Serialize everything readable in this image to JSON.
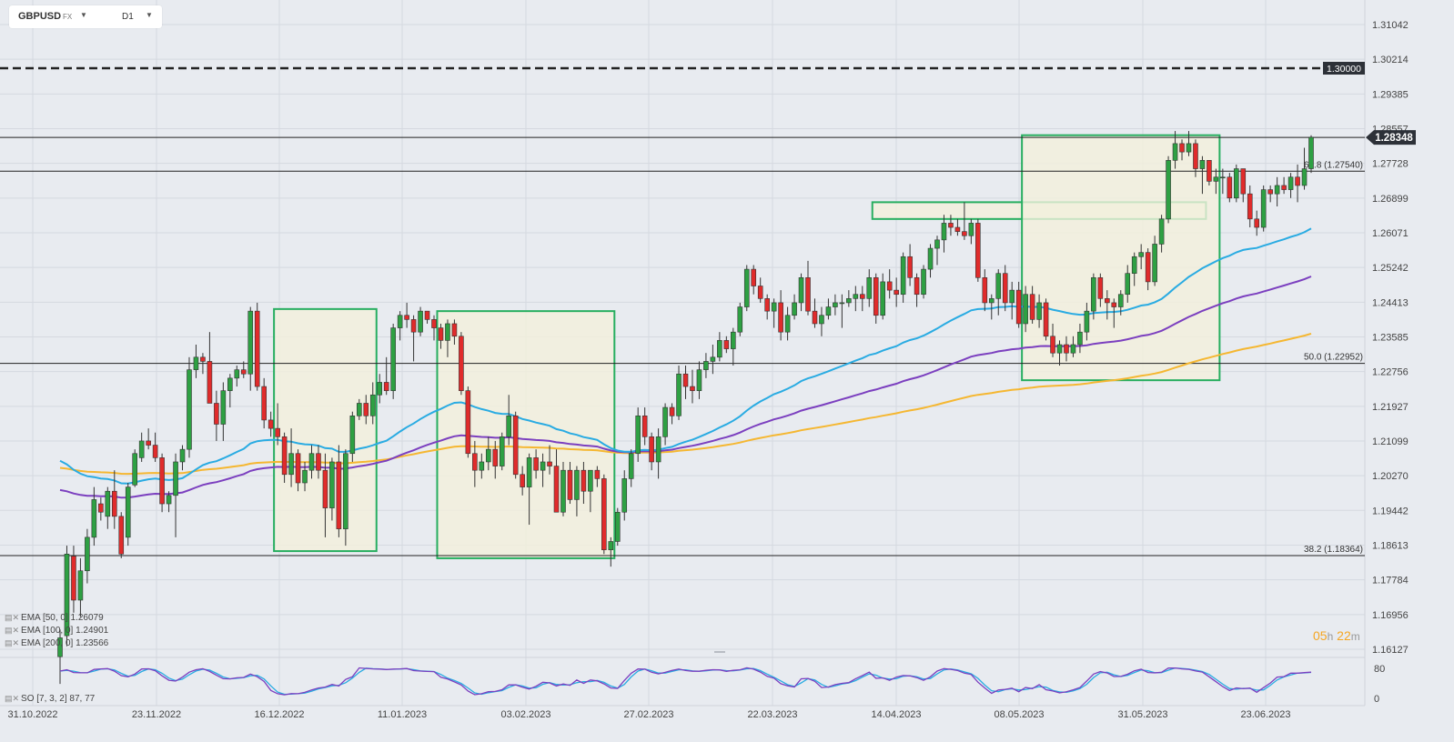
{
  "header": {
    "symbol": "GBPUSD",
    "market": "FX",
    "timeframe": "D1",
    "caret_icon": "chevron-down-icon"
  },
  "indicators": [
    {
      "label": "EMA [50, 0] 1.26079",
      "color": "#29abe2"
    },
    {
      "label": "EMA [100, 0] 1.24901",
      "color": "#7b3fbf"
    },
    {
      "label": "EMA [200, 0] 1.23566",
      "color": "#f5b731"
    }
  ],
  "oscillator_label": "SO [7, 3, 2] 87, 77",
  "timer": {
    "hours": "05",
    "h": "h",
    "minutes": "22",
    "m": "m"
  },
  "chart_data": {
    "type": "candlestick",
    "symbol": "GBPUSD",
    "timeframe": "D1",
    "x_tick_labels": [
      "31.10.2022",
      "23.11.2022",
      "16.12.2022",
      "11.01.2023",
      "03.02.2023",
      "27.02.2023",
      "22.03.2023",
      "14.04.2023",
      "08.05.2023",
      "31.05.2023",
      "23.06.2023"
    ],
    "y_tick_labels": [
      "1.31042",
      "1.30214",
      "1.29385",
      "1.28557",
      "1.27728",
      "1.26899",
      "1.26071",
      "1.25242",
      "1.24413",
      "1.23585",
      "1.22756",
      "1.21927",
      "1.21099",
      "1.20270",
      "1.19442",
      "1.18613",
      "1.17784",
      "1.16956",
      "1.16127"
    ],
    "ylim": [
      1.1604,
      1.3124
    ],
    "current_price": "1.28348",
    "level_label": "1.30000",
    "fib_labels": [
      {
        "label": "61.8 (1.27540)",
        "value": 1.2754
      },
      {
        "label": "50.0 (1.22952)",
        "value": 1.22952
      },
      {
        "label": "38.2 (1.18364)",
        "value": 1.18364
      }
    ],
    "horizontal_lines": [
      1.3,
      1.28348,
      1.2754,
      1.22952,
      1.18364
    ],
    "candles_ohlc": [
      [
        1.1595,
        1.166,
        1.153,
        1.164
      ],
      [
        1.1645,
        1.186,
        1.162,
        1.184
      ],
      [
        1.1835,
        1.186,
        1.17,
        1.173
      ],
      [
        1.173,
        1.183,
        1.169,
        1.18
      ],
      [
        1.18,
        1.19,
        1.177,
        1.188
      ],
      [
        1.188,
        1.2,
        1.186,
        1.197
      ],
      [
        1.196,
        1.1975,
        1.192,
        1.194
      ],
      [
        1.193,
        1.2,
        1.19,
        1.199
      ],
      [
        1.199,
        1.204,
        1.19,
        1.193
      ],
      [
        1.193,
        1.194,
        1.183,
        1.184
      ],
      [
        1.188,
        1.201,
        1.186,
        1.2
      ],
      [
        1.2005,
        1.209,
        1.2,
        1.208
      ],
      [
        1.207,
        1.213,
        1.206,
        1.211
      ],
      [
        1.211,
        1.214,
        1.209,
        1.21
      ],
      [
        1.21,
        1.213,
        1.206,
        1.207
      ],
      [
        1.207,
        1.208,
        1.194,
        1.196
      ],
      [
        1.196,
        1.199,
        1.194,
        1.198
      ],
      [
        1.198,
        1.208,
        1.188,
        1.206
      ],
      [
        1.206,
        1.21,
        1.204,
        1.209
      ],
      [
        1.209,
        1.231,
        1.207,
        1.228
      ],
      [
        1.228,
        1.234,
        1.226,
        1.231
      ],
      [
        1.231,
        1.232,
        1.227,
        1.23
      ],
      [
        1.23,
        1.237,
        1.22,
        1.22
      ],
      [
        1.22,
        1.223,
        1.211,
        1.215
      ],
      [
        1.215,
        1.225,
        1.211,
        1.223
      ],
      [
        1.223,
        1.227,
        1.219,
        1.226
      ],
      [
        1.226,
        1.229,
        1.224,
        1.228
      ],
      [
        1.228,
        1.23,
        1.226,
        1.227
      ],
      [
        1.227,
        1.243,
        1.223,
        1.242
      ],
      [
        1.242,
        1.244,
        1.223,
        1.224
      ],
      [
        1.224,
        1.226,
        1.214,
        1.216
      ],
      [
        1.216,
        1.218,
        1.212,
        1.214
      ],
      [
        1.214,
        1.22,
        1.21,
        1.212
      ],
      [
        1.212,
        1.213,
        1.201,
        1.203
      ],
      [
        1.203,
        1.214,
        1.2,
        1.208
      ],
      [
        1.208,
        1.209,
        1.199,
        1.201
      ],
      [
        1.201,
        1.206,
        1.199,
        1.204
      ],
      [
        1.204,
        1.21,
        1.202,
        1.208
      ],
      [
        1.208,
        1.21,
        1.202,
        1.204
      ],
      [
        1.204,
        1.208,
        1.188,
        1.195
      ],
      [
        1.195,
        1.207,
        1.192,
        1.206
      ],
      [
        1.206,
        1.21,
        1.188,
        1.19
      ],
      [
        1.19,
        1.209,
        1.186,
        1.208
      ],
      [
        1.208,
        1.218,
        1.206,
        1.217
      ],
      [
        1.217,
        1.221,
        1.216,
        1.22
      ],
      [
        1.22,
        1.222,
        1.215,
        1.217
      ],
      [
        1.217,
        1.225,
        1.215,
        1.222
      ],
      [
        1.222,
        1.227,
        1.22,
        1.225
      ],
      [
        1.225,
        1.231,
        1.222,
        1.223
      ],
      [
        1.223,
        1.239,
        1.221,
        1.238
      ],
      [
        1.238,
        1.242,
        1.235,
        1.241
      ],
      [
        1.241,
        1.244,
        1.238,
        1.24
      ],
      [
        1.24,
        1.241,
        1.23,
        1.237
      ],
      [
        1.237,
        1.243,
        1.236,
        1.242
      ],
      [
        1.242,
        1.241,
        1.239,
        1.24
      ],
      [
        1.24,
        1.241,
        1.235,
        1.238
      ],
      [
        1.238,
        1.239,
        1.233,
        1.235
      ],
      [
        1.235,
        1.24,
        1.231,
        1.239
      ],
      [
        1.239,
        1.24,
        1.234,
        1.236
      ],
      [
        1.236,
        1.237,
        1.222,
        1.223
      ],
      [
        1.223,
        1.224,
        1.207,
        1.208
      ],
      [
        1.208,
        1.211,
        1.2,
        1.204
      ],
      [
        1.204,
        1.208,
        1.202,
        1.206
      ],
      [
        1.206,
        1.212,
        1.204,
        1.209
      ],
      [
        1.209,
        1.211,
        1.202,
        1.205
      ],
      [
        1.205,
        1.213,
        1.204,
        1.212
      ],
      [
        1.212,
        1.222,
        1.21,
        1.217
      ],
      [
        1.217,
        1.218,
        1.202,
        1.203
      ],
      [
        1.203,
        1.205,
        1.198,
        1.2
      ],
      [
        1.2,
        1.208,
        1.191,
        1.207
      ],
      [
        1.207,
        1.209,
        1.202,
        1.204
      ],
      [
        1.204,
        1.208,
        1.2,
        1.206
      ],
      [
        1.206,
        1.21,
        1.203,
        1.205
      ],
      [
        1.205,
        1.209,
        1.196,
        1.194
      ],
      [
        1.194,
        1.206,
        1.193,
        1.204
      ],
      [
        1.204,
        1.206,
        1.196,
        1.197
      ],
      [
        1.197,
        1.205,
        1.193,
        1.204
      ],
      [
        1.204,
        1.206,
        1.196,
        1.199
      ],
      [
        1.199,
        1.201,
        1.194,
        1.204
      ],
      [
        1.204,
        1.205,
        1.2,
        1.202
      ],
      [
        1.202,
        1.203,
        1.184,
        1.185
      ],
      [
        1.185,
        1.188,
        1.181,
        1.187
      ],
      [
        1.187,
        1.195,
        1.186,
        1.194
      ],
      [
        1.194,
        1.204,
        1.192,
        1.202
      ],
      [
        1.202,
        1.209,
        1.2,
        1.208
      ],
      [
        1.208,
        1.219,
        1.206,
        1.217
      ],
      [
        1.217,
        1.219,
        1.21,
        1.212
      ],
      [
        1.212,
        1.213,
        1.204,
        1.206
      ],
      [
        1.206,
        1.214,
        1.202,
        1.212
      ],
      [
        1.212,
        1.22,
        1.21,
        1.219
      ],
      [
        1.219,
        1.22,
        1.215,
        1.217
      ],
      [
        1.217,
        1.229,
        1.216,
        1.227
      ],
      [
        1.227,
        1.229,
        1.221,
        1.224
      ],
      [
        1.224,
        1.228,
        1.22,
        1.223
      ],
      [
        1.223,
        1.23,
        1.221,
        1.228
      ],
      [
        1.228,
        1.232,
        1.226,
        1.23
      ],
      [
        1.23,
        1.234,
        1.227,
        1.231
      ],
      [
        1.231,
        1.237,
        1.23,
        1.235
      ],
      [
        1.235,
        1.236,
        1.232,
        1.233
      ],
      [
        1.233,
        1.238,
        1.229,
        1.237
      ],
      [
        1.237,
        1.244,
        1.236,
        1.243
      ],
      [
        1.243,
        1.253,
        1.242,
        1.252
      ],
      [
        1.252,
        1.253,
        1.246,
        1.248
      ],
      [
        1.248,
        1.25,
        1.244,
        1.245
      ],
      [
        1.245,
        1.246,
        1.24,
        1.242
      ],
      [
        1.242,
        1.245,
        1.238,
        1.244
      ],
      [
        1.244,
        1.247,
        1.235,
        1.237
      ],
      [
        1.237,
        1.243,
        1.235,
        1.241
      ],
      [
        1.241,
        1.246,
        1.24,
        1.244
      ],
      [
        1.244,
        1.251,
        1.242,
        1.25
      ],
      [
        1.25,
        1.254,
        1.241,
        1.242
      ],
      [
        1.242,
        1.245,
        1.238,
        1.239
      ],
      [
        1.239,
        1.243,
        1.236,
        1.241
      ],
      [
        1.241,
        1.245,
        1.24,
        1.243
      ],
      [
        1.243,
        1.246,
        1.241,
        1.244
      ],
      [
        1.244,
        1.246,
        1.238,
        1.244
      ],
      [
        1.244,
        1.247,
        1.243,
        1.245
      ],
      [
        1.245,
        1.248,
        1.242,
        1.246
      ],
      [
        1.246,
        1.248,
        1.242,
        1.245
      ],
      [
        1.245,
        1.252,
        1.243,
        1.25
      ],
      [
        1.25,
        1.251,
        1.239,
        1.241
      ],
      [
        1.241,
        1.251,
        1.24,
        1.249
      ],
      [
        1.249,
        1.252,
        1.245,
        1.247
      ],
      [
        1.247,
        1.25,
        1.243,
        1.246
      ],
      [
        1.246,
        1.256,
        1.244,
        1.255
      ],
      [
        1.255,
        1.258,
        1.248,
        1.25
      ],
      [
        1.25,
        1.251,
        1.243,
        1.246
      ],
      [
        1.246,
        1.253,
        1.245,
        1.252
      ],
      [
        1.252,
        1.258,
        1.25,
        1.257
      ],
      [
        1.257,
        1.26,
        1.253,
        1.259
      ],
      [
        1.259,
        1.265,
        1.256,
        1.263
      ],
      [
        1.263,
        1.265,
        1.26,
        1.262
      ],
      [
        1.262,
        1.264,
        1.26,
        1.261
      ],
      [
        1.261,
        1.268,
        1.259,
        1.26
      ],
      [
        1.26,
        1.264,
        1.258,
        1.263
      ],
      [
        1.263,
        1.264,
        1.249,
        1.25
      ],
      [
        1.25,
        1.252,
        1.242,
        1.244
      ],
      [
        1.244,
        1.246,
        1.24,
        1.245
      ],
      [
        1.245,
        1.252,
        1.241,
        1.251
      ],
      [
        1.251,
        1.253,
        1.242,
        1.244
      ],
      [
        1.244,
        1.249,
        1.24,
        1.247
      ],
      [
        1.247,
        1.249,
        1.238,
        1.239
      ],
      [
        1.239,
        1.248,
        1.237,
        1.246
      ],
      [
        1.246,
        1.248,
        1.239,
        1.24
      ],
      [
        1.24,
        1.246,
        1.238,
        1.244
      ],
      [
        1.244,
        1.245,
        1.235,
        1.236
      ],
      [
        1.236,
        1.239,
        1.231,
        1.232
      ],
      [
        1.232,
        1.235,
        1.229,
        1.234
      ],
      [
        1.234,
        1.236,
        1.23,
        1.232
      ],
      [
        1.232,
        1.236,
        1.231,
        1.234
      ],
      [
        1.234,
        1.239,
        1.232,
        1.237
      ],
      [
        1.237,
        1.244,
        1.235,
        1.242
      ],
      [
        1.242,
        1.251,
        1.24,
        1.25
      ],
      [
        1.25,
        1.251,
        1.243,
        1.245
      ],
      [
        1.245,
        1.247,
        1.24,
        1.244
      ],
      [
        1.244,
        1.245,
        1.238,
        1.243
      ],
      [
        1.243,
        1.247,
        1.241,
        1.246
      ],
      [
        1.246,
        1.253,
        1.244,
        1.251
      ],
      [
        1.251,
        1.256,
        1.248,
        1.255
      ],
      [
        1.255,
        1.258,
        1.252,
        1.256
      ],
      [
        1.256,
        1.257,
        1.247,
        1.249
      ],
      [
        1.249,
        1.26,
        1.248,
        1.258
      ],
      [
        1.258,
        1.265,
        1.256,
        1.264
      ],
      [
        1.264,
        1.279,
        1.263,
        1.278
      ],
      [
        1.278,
        1.285,
        1.276,
        1.282
      ],
      [
        1.282,
        1.283,
        1.278,
        1.28
      ],
      [
        1.28,
        1.285,
        1.279,
        1.282
      ],
      [
        1.282,
        1.283,
        1.274,
        1.276
      ],
      [
        1.276,
        1.279,
        1.27,
        1.278
      ],
      [
        1.278,
        1.278,
        1.272,
        1.273
      ],
      [
        1.273,
        1.276,
        1.27,
        1.274
      ],
      [
        1.274,
        1.276,
        1.27,
        1.274
      ],
      [
        1.274,
        1.275,
        1.268,
        1.269
      ],
      [
        1.269,
        1.277,
        1.268,
        1.276
      ],
      [
        1.276,
        1.276,
        1.268,
        1.27
      ],
      [
        1.27,
        1.272,
        1.262,
        1.264
      ],
      [
        1.264,
        1.266,
        1.26,
        1.262
      ],
      [
        1.262,
        1.272,
        1.261,
        1.271
      ],
      [
        1.271,
        1.272,
        1.268,
        1.27
      ],
      [
        1.27,
        1.274,
        1.267,
        1.272
      ],
      [
        1.272,
        1.274,
        1.27,
        1.271
      ],
      [
        1.271,
        1.275,
        1.269,
        1.274
      ],
      [
        1.274,
        1.277,
        1.268,
        1.272
      ],
      [
        1.272,
        1.281,
        1.271,
        1.276
      ],
      [
        1.276,
        1.284,
        1.275,
        1.2835
      ]
    ],
    "ema_series": [
      {
        "name": "EMA [50, 0] 1.26079",
        "period": 50,
        "last": 1.26079
      },
      {
        "name": "EMA [100, 0] 1.24901",
        "period": 100,
        "last": 1.24901
      },
      {
        "name": "EMA [200, 0] 1.23566",
        "period": 200,
        "last": 1.23566
      }
    ],
    "oscillator": {
      "name": "SO [7, 3, 2] 87, 77",
      "type": "stochastic",
      "tick_labels": [
        "80",
        "0"
      ],
      "last_values": [
        87,
        77
      ]
    },
    "grid": true,
    "colors": {
      "up": "#2ea043",
      "down": "#e02b2b",
      "ema50": "#29abe2",
      "ema100": "#7b3fbf",
      "ema200": "#f5b731",
      "box_stroke": "#27ae60",
      "box_fill": "#f2f0dc"
    }
  }
}
